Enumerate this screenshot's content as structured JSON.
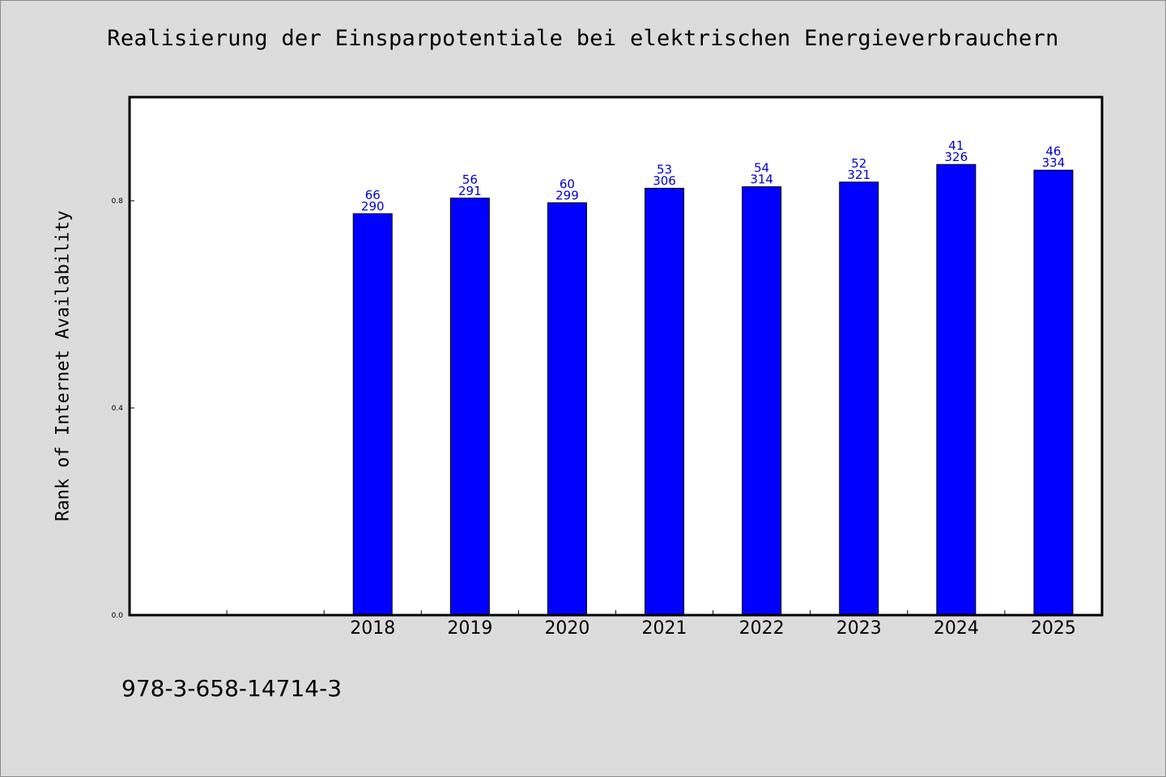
{
  "chart_data": {
    "type": "bar",
    "title": "Realisierung der Einsparpotentiale bei elektrischen Energieverbrauchern",
    "ylabel": "Rank of Internet Availability",
    "xlabel": "",
    "categories": [
      "",
      "",
      "2018",
      "2019",
      "2020",
      "2021",
      "2022",
      "2023",
      "2024",
      "2025"
    ],
    "values": [
      null,
      null,
      0.775,
      0.805,
      0.796,
      0.824,
      0.827,
      0.836,
      0.87,
      0.859
    ],
    "label_top": [
      "",
      "",
      "66",
      "56",
      "60",
      "53",
      "54",
      "52",
      "41",
      "46"
    ],
    "label_bottom": [
      "",
      "",
      "290",
      "291",
      "299",
      "306",
      "314",
      "321",
      "326",
      "334"
    ],
    "ylim": [
      0,
      1.0
    ],
    "yticks": [
      0.0,
      0.4,
      0.8
    ],
    "ytick_labels": [
      "0.0",
      "0.4",
      "0.8"
    ],
    "grid": false,
    "bar_color": "#0000ff",
    "label_color": "#0000cc"
  },
  "footer": {
    "isbn": "978-3-658-14714-3"
  }
}
